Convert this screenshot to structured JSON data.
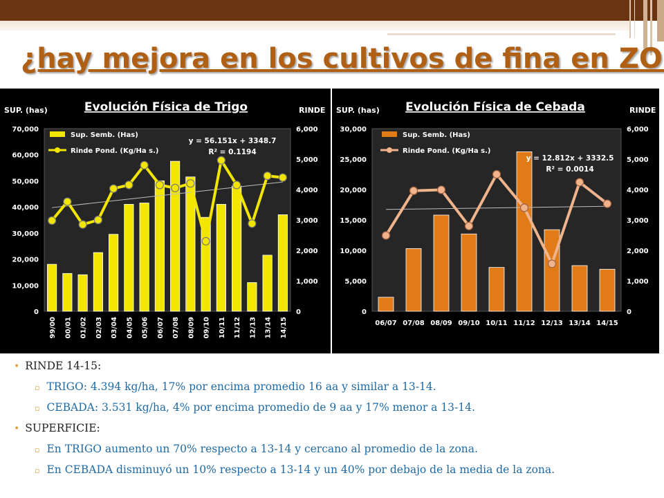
{
  "slide_title": "¿hay mejora en los cultivos de fina en ZO?",
  "bullets": {
    "rinde_heading": "RINDE 14-15:",
    "rinde_trigo": "TRIGO: 4.394 kg/ha, 17% por encima promedio 16 aa y similar a 13-14.",
    "rinde_cebada": "CEBADA: 3.531 kg/ha, 4% por encima promedio de 9 aa y 17% menor a 13-14.",
    "sup_heading": "SUPERFICIE:",
    "sup_trigo": "En TRIGO aumento un 70% respecto a 13-14 y cercano al promedio de la zona.",
    "sup_cebada": "En CEBADA disminuyó un 10% respecto a 13-14 y un 40% por debajo de la media de la zona."
  },
  "colors": {
    "title": "#b06015",
    "trigo_bar": "#f2e600",
    "cebada_bar": "#e07b17",
    "cebada_line": "#f0b48c",
    "bullet_text": "#1f6aa5",
    "bullet_marker": "#d9a441"
  },
  "chart_data": [
    {
      "type": "bar+line",
      "title": "Evolución Física de Trigo",
      "left_axis_label": "SUP. (has)",
      "right_axis_label": "RINDE",
      "categories": [
        "99/00",
        "00/01",
        "01/02",
        "02/03",
        "03/04",
        "04/05",
        "05/06",
        "06/07",
        "07/08",
        "08/09",
        "09/10",
        "10/11",
        "11/12",
        "12/13",
        "13/14",
        "14/15"
      ],
      "series": [
        {
          "name": "Sup. Semb. (Has)",
          "type": "bar",
          "axis": "left",
          "values": [
            18000,
            14500,
            14000,
            22500,
            29500,
            41000,
            41500,
            50000,
            57500,
            51500,
            36000,
            41000,
            48000,
            11000,
            21500,
            37000
          ]
        },
        {
          "name": "Rinde Pond. (Kg/Ha s.)",
          "type": "line",
          "axis": "right",
          "values": [
            2980,
            3600,
            2850,
            3000,
            4030,
            4150,
            4800,
            4150,
            4050,
            4200,
            2300,
            4960,
            4150,
            2880,
            4450,
            4394
          ]
        }
      ],
      "left_ylim": [
        0,
        70000
      ],
      "left_ticks": [
        "0",
        "10,000",
        "20,000",
        "30,000",
        "40,000",
        "50,000",
        "60,000",
        "70,000"
      ],
      "right_ylim": [
        0,
        6000
      ],
      "right_ticks": [
        "0",
        "1,000",
        "2,000",
        "3,000",
        "4,000",
        "5,000",
        "6,000"
      ],
      "trend": {
        "slope": 56.151,
        "intercept": 3348.7
      },
      "trend_label": "y = 56.151x + 3348.7",
      "r2_label": "R² = 0.1194"
    },
    {
      "type": "bar+line",
      "title": "Evolución Física de Cebada",
      "left_axis_label": "SUP. (has)",
      "right_axis_label": "RINDE",
      "categories": [
        "06/07",
        "07/08",
        "08/09",
        "09/10",
        "10/11",
        "11/12",
        "12/13",
        "13/14",
        "14/15"
      ],
      "series": [
        {
          "name": "Sup. Semb. (Has)",
          "type": "bar",
          "axis": "left",
          "values": [
            2300,
            10300,
            15800,
            12700,
            7200,
            26200,
            13400,
            7500,
            6900
          ]
        },
        {
          "name": "Rinde Pond. (Kg/Ha s.)",
          "type": "line",
          "axis": "right",
          "values": [
            2490,
            3960,
            3990,
            2800,
            4500,
            3400,
            1560,
            4240,
            3531
          ]
        }
      ],
      "left_ylim": [
        0,
        30000
      ],
      "left_ticks": [
        "0",
        "5,000",
        "10,000",
        "15,000",
        "20,000",
        "25,000",
        "30,000"
      ],
      "right_ylim": [
        0,
        6000
      ],
      "right_ticks": [
        "0",
        "1,000",
        "2,000",
        "3,000",
        "4,000",
        "5,000",
        "6,000"
      ],
      "trend": {
        "slope": 12.812,
        "intercept": 3332.5
      },
      "trend_label": "y = 12.812x + 3332.5",
      "r2_label": "R² = 0.0014"
    }
  ]
}
